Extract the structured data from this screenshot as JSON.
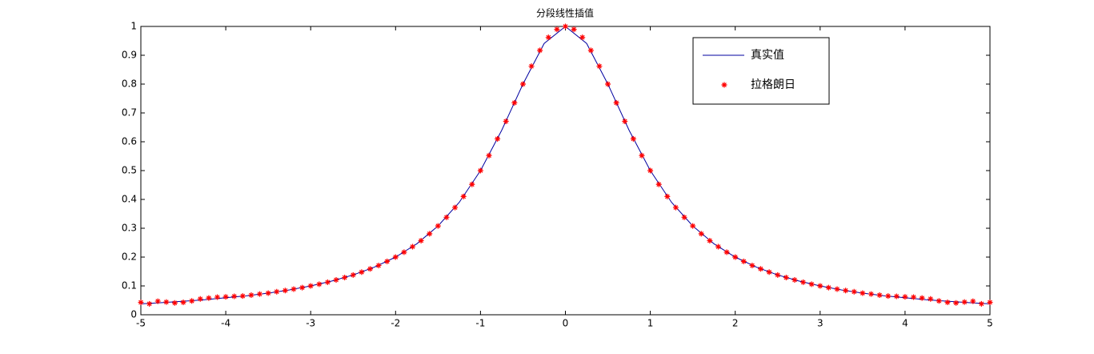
{
  "chart_data": {
    "type": "line",
    "title": "分段线性插值",
    "xlim": [
      -5,
      5
    ],
    "ylim": [
      0,
      1
    ],
    "xticks": [
      -5,
      -4,
      -3,
      -2,
      -1,
      0,
      1,
      2,
      3,
      4,
      5
    ],
    "yticks": [
      0,
      0.1,
      0.2,
      0.3,
      0.4,
      0.5,
      0.6,
      0.7,
      0.8,
      0.9,
      1
    ],
    "legend": "upper right",
    "series": [
      {
        "name": "真实值",
        "color": "#0000a0",
        "style": "line",
        "x": [
          -5,
          -4.75,
          -4.5,
          -4.25,
          -4,
          -3.75,
          -3.5,
          -3.25,
          -3,
          -2.75,
          -2.5,
          -2.25,
          -2,
          -1.75,
          -1.5,
          -1.25,
          -1,
          -0.75,
          -0.5,
          -0.25,
          0,
          0.25,
          0.5,
          0.75,
          1,
          1.25,
          1.5,
          1.75,
          2,
          2.25,
          2.5,
          2.75,
          3,
          3.25,
          3.5,
          3.75,
          4,
          4.25,
          4.5,
          4.75,
          5
        ],
        "values": [
          0.038,
          0.042,
          0.047,
          0.052,
          0.059,
          0.066,
          0.075,
          0.086,
          0.1,
          0.117,
          0.138,
          0.165,
          0.2,
          0.246,
          0.308,
          0.39,
          0.5,
          0.64,
          0.8,
          0.941,
          1,
          0.941,
          0.8,
          0.64,
          0.5,
          0.39,
          0.308,
          0.246,
          0.2,
          0.165,
          0.138,
          0.117,
          0.1,
          0.086,
          0.075,
          0.066,
          0.059,
          0.052,
          0.047,
          0.042,
          0.038
        ]
      },
      {
        "name": "拉格朗日",
        "color": "#ff0000",
        "style": "marker",
        "x": [
          -5,
          -4.9,
          -4.8,
          -4.7,
          -4.6,
          -4.5,
          -4.4,
          -4.3,
          -4.2,
          -4.1,
          -4,
          -3.9,
          -3.8,
          -3.7,
          -3.6,
          -3.5,
          -3.4,
          -3.3,
          -3.2,
          -3.1,
          -3,
          -2.9,
          -2.8,
          -2.7,
          -2.6,
          -2.5,
          -2.4,
          -2.3,
          -2.2,
          -2.1,
          -2,
          -1.9,
          -1.8,
          -1.7,
          -1.6,
          -1.5,
          -1.4,
          -1.3,
          -1.2,
          -1.1,
          -1,
          -0.9,
          -0.8,
          -0.7,
          -0.6,
          -0.5,
          -0.4,
          -0.3,
          -0.2,
          -0.1,
          0,
          0.1,
          0.2,
          0.3,
          0.4,
          0.5,
          0.6,
          0.7,
          0.8,
          0.9,
          1,
          1.1,
          1.2,
          1.3,
          1.4,
          1.5,
          1.6,
          1.7,
          1.8,
          1.9,
          2,
          2.1,
          2.2,
          2.3,
          2.4,
          2.5,
          2.6,
          2.7,
          2.8,
          2.9,
          3,
          3.1,
          3.2,
          3.3,
          3.4,
          3.5,
          3.6,
          3.7,
          3.8,
          3.9,
          4,
          4.1,
          4.2,
          4.3,
          4.4,
          4.5,
          4.6,
          4.7,
          4.8,
          4.9,
          5
        ],
        "values": [
          0.043,
          0.038,
          0.047,
          0.044,
          0.041,
          0.043,
          0.048,
          0.055,
          0.058,
          0.061,
          0.062,
          0.064,
          0.065,
          0.068,
          0.072,
          0.075,
          0.08,
          0.084,
          0.089,
          0.094,
          0.1,
          0.106,
          0.113,
          0.121,
          0.129,
          0.138,
          0.148,
          0.159,
          0.171,
          0.185,
          0.2,
          0.217,
          0.236,
          0.257,
          0.281,
          0.308,
          0.338,
          0.372,
          0.41,
          0.452,
          0.5,
          0.552,
          0.61,
          0.671,
          0.735,
          0.8,
          0.862,
          0.917,
          0.962,
          0.99,
          1,
          0.99,
          0.962,
          0.917,
          0.862,
          0.8,
          0.735,
          0.671,
          0.61,
          0.552,
          0.5,
          0.452,
          0.41,
          0.372,
          0.338,
          0.308,
          0.281,
          0.257,
          0.236,
          0.217,
          0.2,
          0.185,
          0.171,
          0.159,
          0.148,
          0.138,
          0.129,
          0.121,
          0.113,
          0.106,
          0.1,
          0.094,
          0.089,
          0.084,
          0.08,
          0.075,
          0.072,
          0.068,
          0.065,
          0.064,
          0.062,
          0.061,
          0.058,
          0.055,
          0.048,
          0.043,
          0.041,
          0.044,
          0.047,
          0.038,
          0.043
        ]
      }
    ]
  }
}
